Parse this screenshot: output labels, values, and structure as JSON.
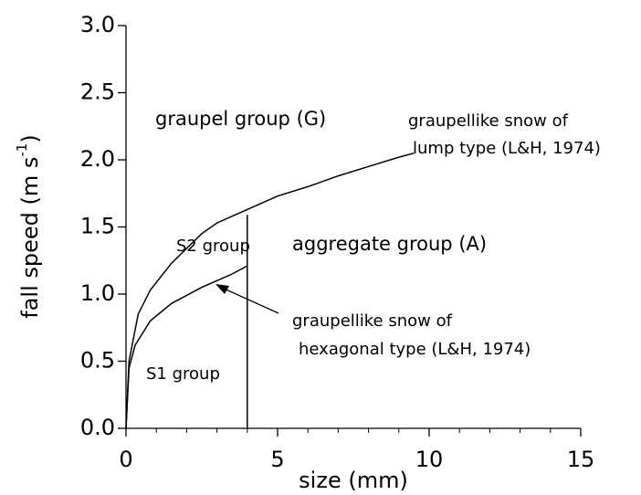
{
  "chart_data": {
    "type": "line",
    "xlabel": "size (mm)",
    "ylabel": {
      "text": "fall speed (m s",
      "sup": "-1",
      "end": ")"
    },
    "xlim": [
      0,
      15
    ],
    "ylim": [
      0,
      3.0
    ],
    "xticks": [
      0,
      5,
      10,
      15
    ],
    "xminorticks": [
      1,
      2,
      3,
      4,
      6,
      7,
      8,
      9,
      11,
      12,
      13,
      14
    ],
    "yticks": [
      {
        "value": 0,
        "label": "0.0"
      },
      0.5,
      {
        "value": 1,
        "label": "1.0"
      },
      1.5,
      {
        "value": 2,
        "label": "2.0"
      },
      2.5,
      {
        "value": 3,
        "label": "3.0"
      }
    ],
    "series": [
      {
        "color": "#000000",
        "x": [
          0,
          0.1,
          0.4,
          0.8,
          1.5,
          2.5,
          3,
          4,
          5,
          6,
          7,
          8,
          9,
          9.5
        ],
        "values": [
          0,
          0.5,
          0.85,
          1.03,
          1.23,
          1.45,
          1.53,
          1.63,
          1.73,
          1.8,
          1.88,
          1.95,
          2.02,
          2.05
        ]
      },
      {
        "color": "#000000",
        "x": [
          0,
          0.1,
          0.3,
          0.8,
          1.5,
          2.5,
          3,
          3.5,
          4
        ],
        "values": [
          0,
          0.45,
          0.62,
          0.8,
          0.93,
          1.05,
          1.1,
          1.15,
          1.21
        ]
      },
      {
        "color": "#000000",
        "x": [
          4,
          4
        ],
        "values": [
          0,
          1.59
        ]
      }
    ],
    "annotations": [
      "graupel group (G)",
      "graupellike snow of",
      "lump type (L&H, 1974)",
      "S2 group",
      "aggregate group (A)",
      "graupellike snow of",
      "hexagonal type (L&H, 1974)",
      "S1 group"
    ]
  }
}
